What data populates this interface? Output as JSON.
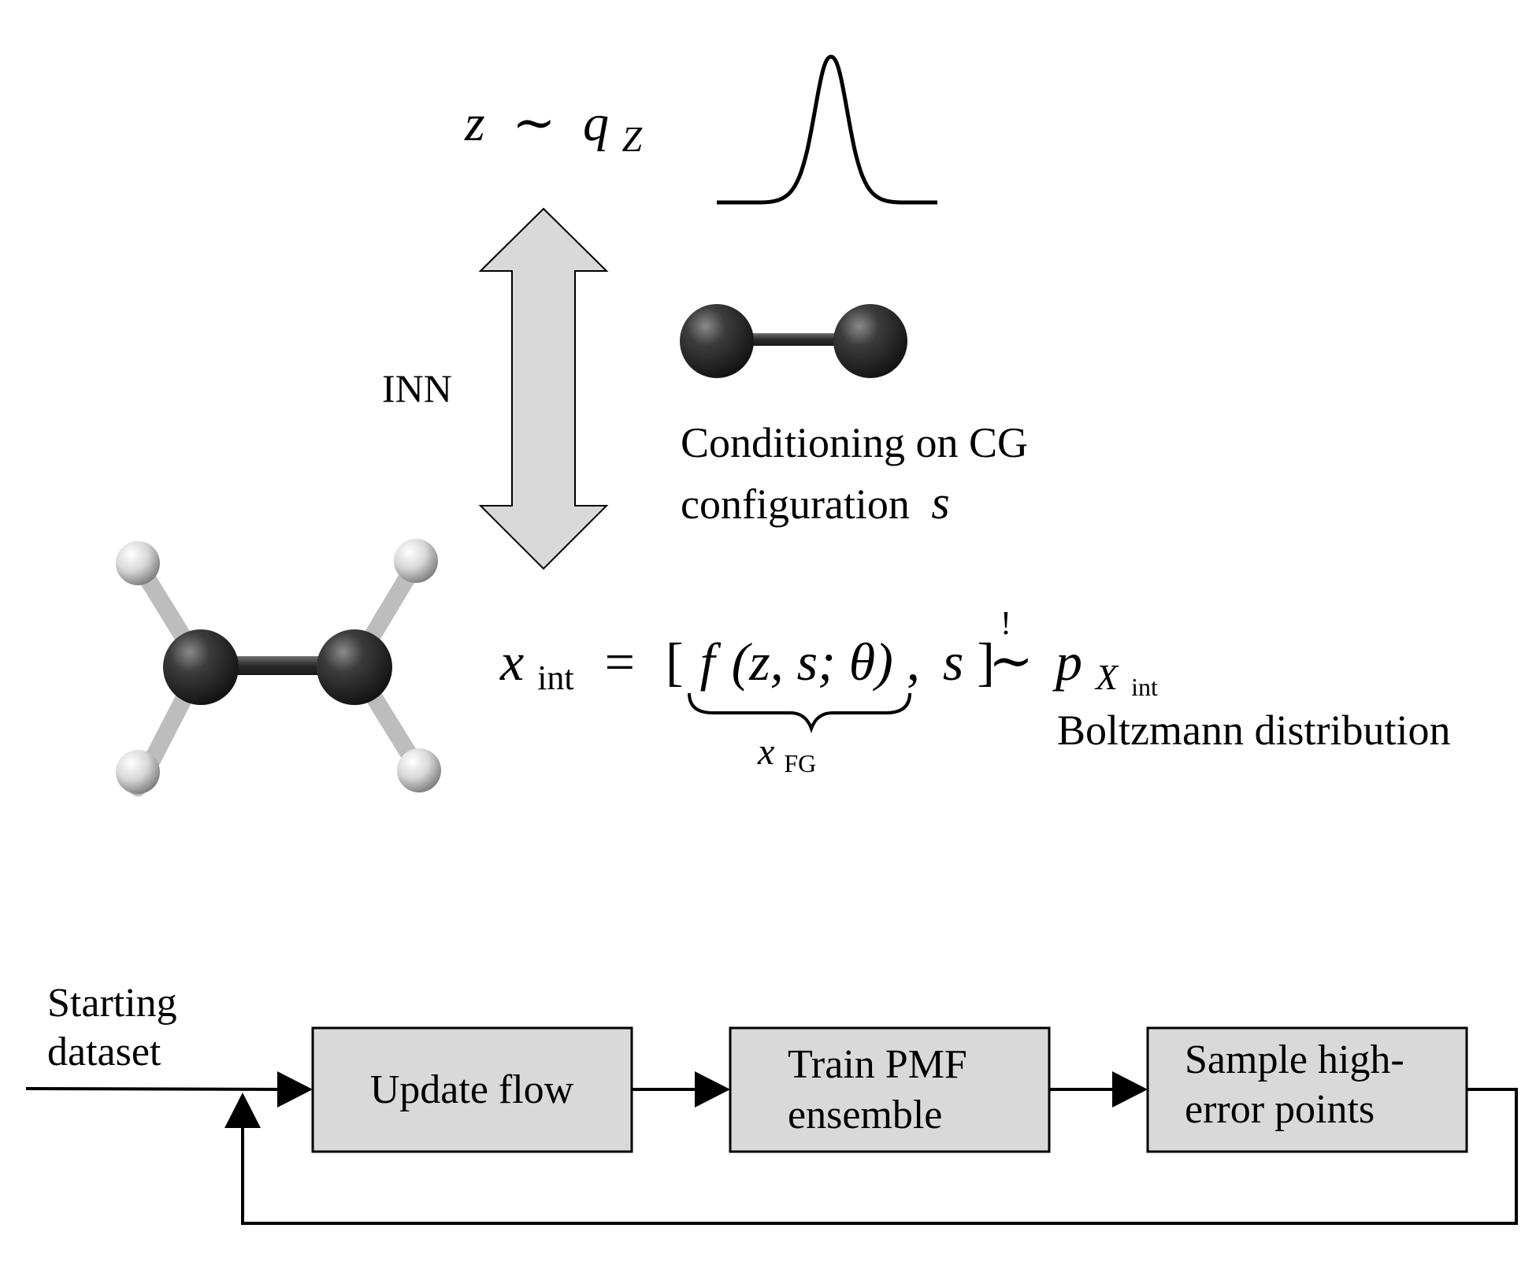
{
  "top": {
    "latent_eq": {
      "var": "z",
      "rel": "∼",
      "dist": "q",
      "dist_sub": "Z"
    },
    "inn_label": "INN",
    "cg_text": {
      "line1": "Conditioning on CG",
      "line2": "configuration",
      "var": "s"
    },
    "main_eq": {
      "lhs": "x",
      "lhs_sub": "int",
      "equals": "=",
      "open_bracket": "[",
      "func": "f",
      "args": "(z, s; θ)",
      "comma": ",",
      "s": "s",
      "close_bracket": "]",
      "excl": "!",
      "tilde": "∼",
      "rhs": "p",
      "rhs_sub": "X",
      "rhs_subsub": "int",
      "brace_var": "x",
      "brace_sub": "FG"
    },
    "boltzmann_label": "Boltzmann distribution"
  },
  "flow": {
    "start_line1": "Starting",
    "start_line2": "dataset",
    "box1": "Update flow",
    "box2_line1": "Train PMF",
    "box2_line2": "ensemble",
    "box3_line1": "Sample high-",
    "box3_line2": "error points"
  },
  "colors": {
    "box_fill": "#d9d9d9",
    "arrow_fill": "#d9d9d9",
    "carbon": "#3a3a3a",
    "hydrogen": "#e8e8e8",
    "stroke": "#000000"
  }
}
